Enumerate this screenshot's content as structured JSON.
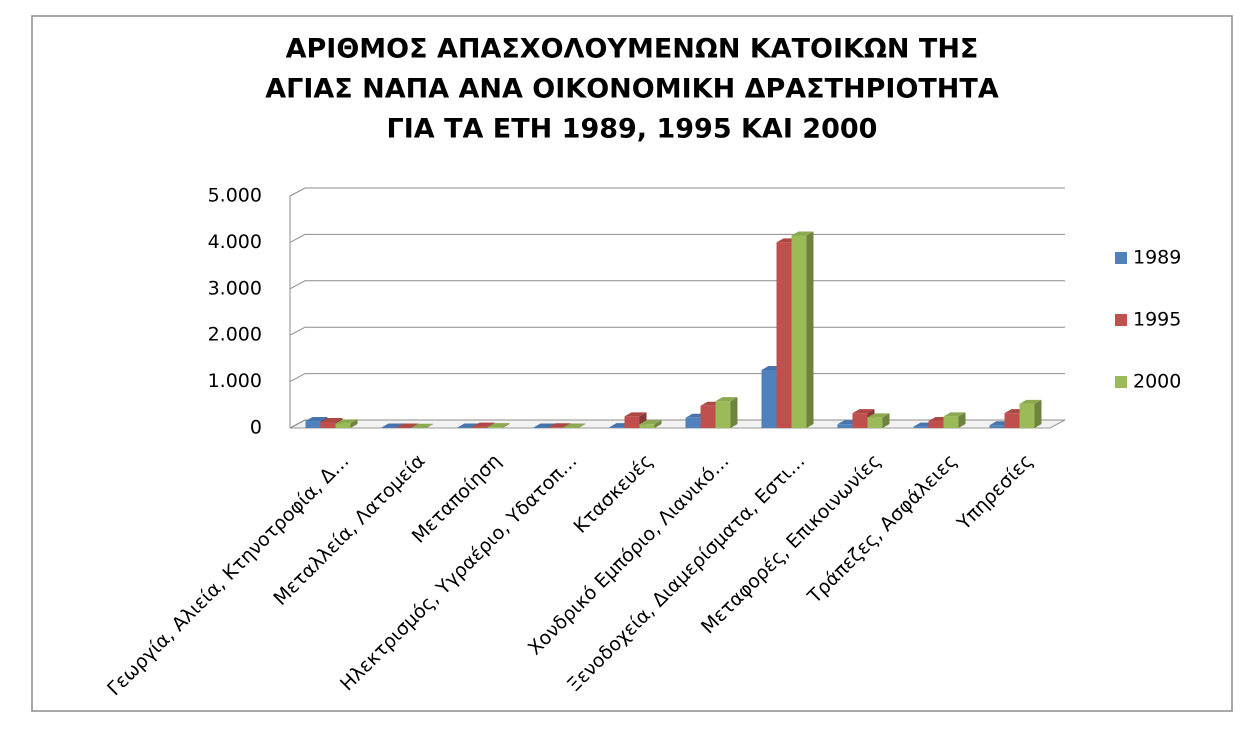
{
  "chart_data": {
    "type": "bar",
    "title": [
      "ΑΡΙΘΜΟΣ ΑΠΑΣΧΟΛΟΥΜΕΝΩΝ ΚΑΤΟΙΚΩΝ ΤΗΣ",
      "ΑΓΙΑΣ ΝΑΠΑ ΑΝΑ ΟΙΚΟΝΟΜΙΚΗ ΔΡΑΣΤΗΡΙΟΤΗΤΑ",
      "ΓΙΑ ΤΑ ΕΤΗ 1989, 1995 ΚΑΙ 2000"
    ],
    "categories": [
      "Γεωργία, Αλιεία, Κτηνοτροφία, Δ…",
      "Μεταλλεία, Λατομεία",
      "Μεταποίηση",
      "Ηλεκτρισμός, Υγραέριο, Υδατοπ…",
      "Κτασκευές",
      "Χονδρικό Εμπόριο, Λιανικό…",
      "Ξενοδοχεία, Διαμερίσματα, Εστι…",
      "Μεταφορές, Επικοινωνίες",
      "Τράπεζες, Ασφάλειες",
      "Υπηρεσίες"
    ],
    "series": [
      {
        "name": "1989",
        "color": "#4f81bd",
        "values": [
          150,
          10,
          10,
          10,
          20,
          220,
          1250,
          80,
          30,
          60
        ]
      },
      {
        "name": "1995",
        "color": "#c0504d",
        "values": [
          130,
          10,
          30,
          15,
          250,
          480,
          4000,
          320,
          150,
          320
        ]
      },
      {
        "name": "2000",
        "color": "#9bbb59",
        "values": [
          100,
          5,
          20,
          10,
          80,
          580,
          4150,
          230,
          250,
          520
        ]
      }
    ],
    "ylim": [
      0,
      5000
    ],
    "yticks": [
      0,
      {
        "value": 1000,
        "label": "1.000"
      },
      {
        "value": 2000,
        "label": "2.000"
      },
      {
        "value": 3000,
        "label": "3.000"
      },
      {
        "value": 4000,
        "label": "4.000"
      },
      {
        "value": 5000,
        "label": "5.000"
      }
    ],
    "grid": true,
    "legend": "right"
  }
}
